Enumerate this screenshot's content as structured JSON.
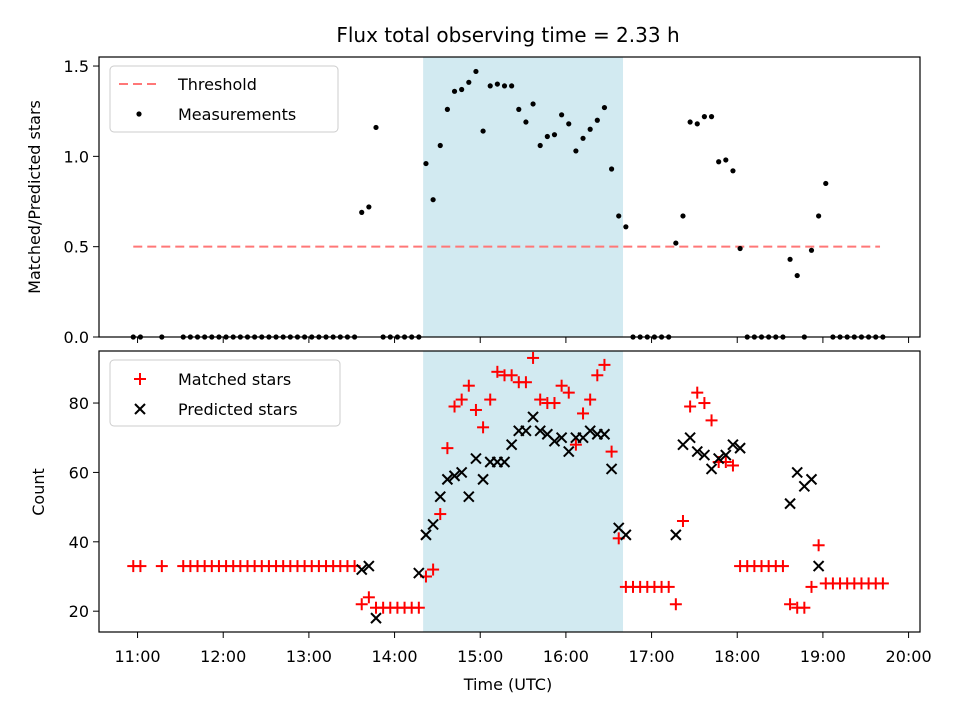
{
  "chart_data": {
    "title": "Flux total observing time = 2.33 h",
    "xlabel": "Time (UTC)",
    "x_ticks": [
      "11:00",
      "12:00",
      "13:00",
      "14:00",
      "15:00",
      "16:00",
      "17:00",
      "18:00",
      "19:00",
      "20:00"
    ],
    "x_range": [
      "10:33",
      "20:08"
    ],
    "shaded_span": {
      "start": "14:20",
      "end": "16:40",
      "color": "#add8e6"
    },
    "panels": [
      {
        "type": "scatter",
        "ylabel": "Matched/Predicted stars",
        "ylim": [
          0,
          1.55
        ],
        "y_ticks": [
          "0.0",
          "0.5",
          "1.0",
          "1.5"
        ],
        "legend_position": "upper-left",
        "threshold": {
          "name": "Threshold",
          "value": 0.5,
          "x_start": "10:57",
          "x_end": "19:40",
          "color": "#ff7777"
        },
        "series": [
          {
            "name": "Measurements",
            "color": "#000000",
            "marker": "dot",
            "x": [
              "10:57",
              "11:02",
              "11:17",
              "11:32",
              "11:37",
              "11:42",
              "11:47",
              "11:52",
              "11:57",
              "12:02",
              "12:07",
              "12:12",
              "12:17",
              "12:22",
              "12:27",
              "12:32",
              "12:37",
              "12:42",
              "12:47",
              "12:52",
              "12:57",
              "13:02",
              "13:07",
              "13:12",
              "13:17",
              "13:22",
              "13:27",
              "13:32",
              "13:37",
              "13:42",
              "13:47",
              "13:52",
              "13:57",
              "14:02",
              "14:07",
              "14:12",
              "14:17",
              "14:22",
              "14:27",
              "14:32",
              "14:37",
              "14:42",
              "14:47",
              "14:52",
              "14:57",
              "15:02",
              "15:07",
              "15:12",
              "15:17",
              "15:22",
              "15:27",
              "15:32",
              "15:37",
              "15:42",
              "15:47",
              "15:52",
              "15:57",
              "16:02",
              "16:07",
              "16:12",
              "16:17",
              "16:22",
              "16:27",
              "16:32",
              "16:37",
              "16:42",
              "16:47",
              "16:52",
              "16:57",
              "17:02",
              "17:07",
              "17:12",
              "17:17",
              "17:22",
              "17:27",
              "17:32",
              "17:37",
              "17:42",
              "17:47",
              "17:52",
              "17:57",
              "18:02",
              "18:07",
              "18:12",
              "18:17",
              "18:22",
              "18:27",
              "18:32",
              "18:37",
              "18:42",
              "18:47",
              "18:52",
              "18:57",
              "19:02",
              "19:07",
              "19:12",
              "19:17",
              "19:22",
              "19:27",
              "19:32",
              "19:37",
              "19:42"
            ],
            "y": [
              0,
              0,
              0,
              0,
              0,
              0,
              0,
              0,
              0,
              0,
              0,
              0,
              0,
              0,
              0,
              0,
              0,
              0,
              0,
              0,
              0,
              0,
              0,
              0,
              0,
              0,
              0,
              0,
              0.69,
              0.72,
              1.16,
              0,
              0,
              0,
              0,
              0,
              0,
              0.96,
              0.76,
              1.06,
              1.26,
              1.36,
              1.37,
              1.41,
              1.47,
              1.14,
              1.39,
              1.4,
              1.39,
              1.39,
              1.26,
              1.19,
              1.29,
              1.06,
              1.11,
              1.12,
              1.23,
              1.18,
              1.03,
              1.1,
              1.15,
              1.2,
              1.27,
              0.93,
              0.67,
              0.61,
              0,
              0,
              0,
              0,
              0,
              0,
              0.52,
              0.67,
              1.19,
              1.18,
              1.22,
              1.22,
              0.97,
              0.98,
              0.92,
              0.49,
              0,
              0,
              0,
              0,
              0,
              0,
              0.43,
              0.34,
              0,
              0.48,
              0.67,
              0.85,
              0,
              0,
              0,
              0,
              0,
              0,
              0,
              0
            ]
          }
        ]
      },
      {
        "type": "scatter",
        "ylabel": "Count",
        "ylim": [
          14,
          95
        ],
        "y_ticks": [
          "20",
          "40",
          "60",
          "80"
        ],
        "legend_position": "upper-left",
        "series": [
          {
            "name": "Matched stars",
            "color": "#ff0000",
            "marker": "plus",
            "x": [
              "10:57",
              "11:02",
              "11:17",
              "11:32",
              "11:37",
              "11:42",
              "11:47",
              "11:52",
              "11:57",
              "12:02",
              "12:07",
              "12:12",
              "12:17",
              "12:22",
              "12:27",
              "12:32",
              "12:37",
              "12:42",
              "12:47",
              "12:52",
              "12:57",
              "13:02",
              "13:07",
              "13:12",
              "13:17",
              "13:22",
              "13:27",
              "13:32",
              "13:37",
              "13:42",
              "13:47",
              "13:52",
              "13:57",
              "14:02",
              "14:07",
              "14:12",
              "14:17",
              "14:22",
              "14:27",
              "14:32",
              "14:37",
              "14:42",
              "14:47",
              "14:52",
              "14:57",
              "15:02",
              "15:07",
              "15:12",
              "15:17",
              "15:22",
              "15:27",
              "15:32",
              "15:37",
              "15:42",
              "15:47",
              "15:52",
              "15:57",
              "16:02",
              "16:07",
              "16:12",
              "16:17",
              "16:22",
              "16:27",
              "16:32",
              "16:37",
              "16:42",
              "16:47",
              "16:52",
              "16:57",
              "17:02",
              "17:07",
              "17:12",
              "17:17",
              "17:22",
              "17:27",
              "17:32",
              "17:37",
              "17:42",
              "17:47",
              "17:52",
              "17:57",
              "18:02",
              "18:07",
              "18:12",
              "18:17",
              "18:22",
              "18:27",
              "18:32",
              "18:37",
              "18:42",
              "18:47",
              "18:52",
              "18:57",
              "19:02",
              "19:07",
              "19:12",
              "19:17",
              "19:22",
              "19:27",
              "19:32",
              "19:37",
              "19:42"
            ],
            "y": [
              33,
              33,
              33,
              33,
              33,
              33,
              33,
              33,
              33,
              33,
              33,
              33,
              33,
              33,
              33,
              33,
              33,
              33,
              33,
              33,
              33,
              33,
              33,
              33,
              33,
              33,
              33,
              33,
              22,
              24,
              21,
              21,
              21,
              21,
              21,
              21,
              21,
              30,
              32,
              48,
              67,
              79,
              81,
              85,
              78,
              73,
              81,
              89,
              88,
              88,
              86,
              86,
              93,
              81,
              80,
              80,
              85,
              83,
              68,
              77,
              81,
              88,
              91,
              66,
              41,
              27,
              27,
              27,
              27,
              27,
              27,
              27,
              22,
              46,
              79,
              83,
              80,
              75,
              63,
              63,
              62,
              33,
              33,
              33,
              33,
              33,
              33,
              33,
              22,
              21,
              21,
              27,
              39,
              28,
              28,
              28,
              28,
              28,
              28,
              28,
              28,
              28
            ]
          },
          {
            "name": "Predicted stars",
            "color": "#000000",
            "marker": "x",
            "x": [
              "13:37",
              "13:42",
              "13:47",
              "14:17",
              "14:22",
              "14:27",
              "14:32",
              "14:37",
              "14:42",
              "14:47",
              "14:52",
              "14:57",
              "15:02",
              "15:07",
              "15:12",
              "15:17",
              "15:22",
              "15:27",
              "15:32",
              "15:37",
              "15:42",
              "15:47",
              "15:52",
              "15:57",
              "16:02",
              "16:07",
              "16:12",
              "16:17",
              "16:22",
              "16:27",
              "16:32",
              "16:37",
              "16:42",
              "17:17",
              "17:22",
              "17:27",
              "17:32",
              "17:37",
              "17:42",
              "17:47",
              "17:52",
              "17:57",
              "18:02",
              "18:37",
              "18:42",
              "18:47",
              "18:52",
              "18:57"
            ],
            "y": [
              32,
              33,
              18,
              31,
              42,
              45,
              53,
              58,
              59,
              60,
              53,
              64,
              58,
              63,
              63,
              63,
              68,
              72,
              72,
              76,
              72,
              71,
              69,
              70,
              66,
              70,
              70,
              72,
              71,
              71,
              61,
              44,
              42,
              42,
              68,
              70,
              66,
              65,
              61,
              64,
              65,
              68,
              67,
              51,
              60,
              56,
              58,
              33
            ]
          }
        ]
      }
    ]
  }
}
